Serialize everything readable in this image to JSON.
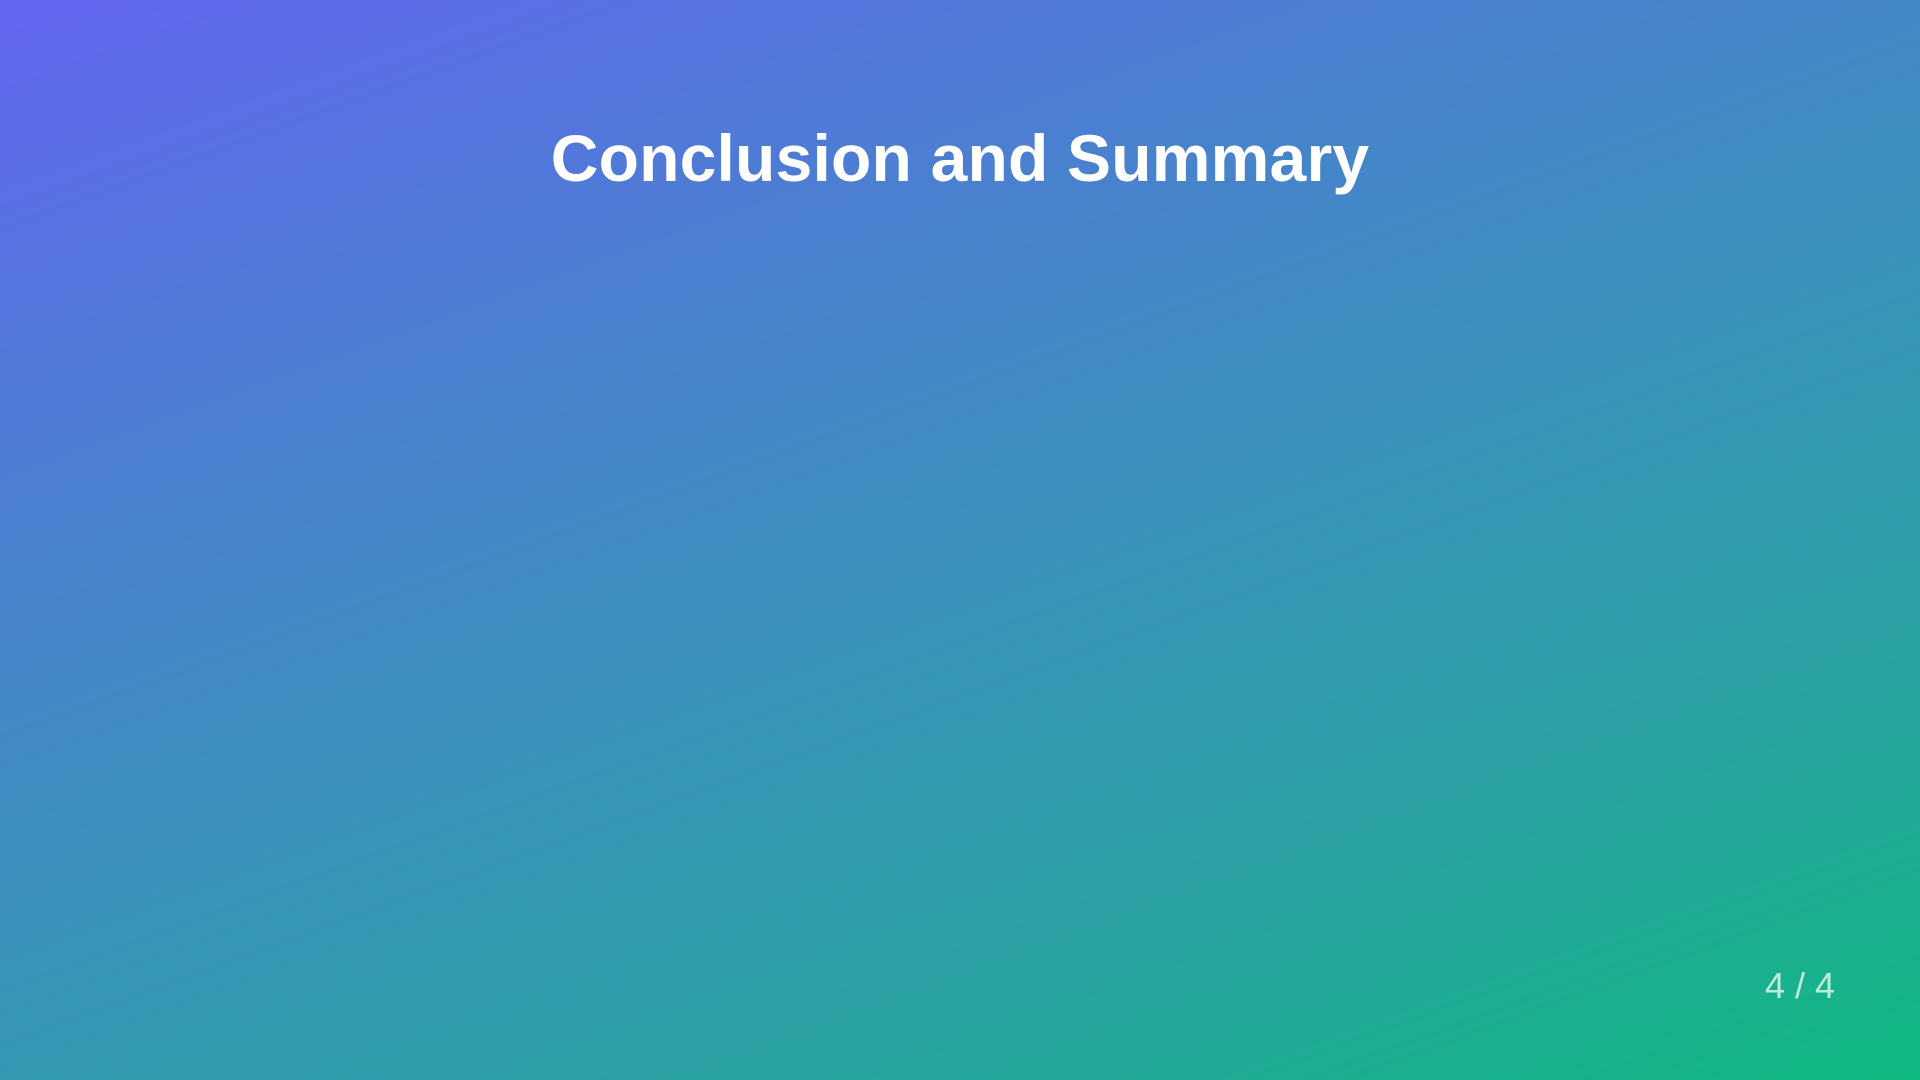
{
  "slide": {
    "title": "Conclusion and Summary",
    "page_counter": "4 / 4"
  },
  "colors": {
    "gradient_start": "#6366f1",
    "gradient_end": "#10b981",
    "title_text": "#ffffff"
  }
}
